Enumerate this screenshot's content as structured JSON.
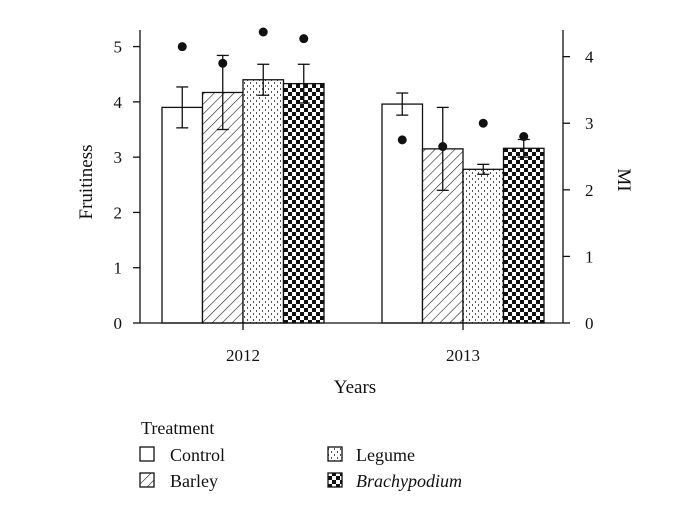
{
  "chart_data": {
    "type": "bar",
    "xlabel": "Years",
    "ylabel": "Fruitiness",
    "y2label": "MI",
    "categories": [
      "2012",
      "2013"
    ],
    "ylim": [
      0,
      5.3
    ],
    "yticks": [
      "0",
      "1",
      "2",
      "3",
      "4",
      "5"
    ],
    "y2lim": [
      0,
      4.4
    ],
    "y2ticks": [
      "0",
      "1",
      "2",
      "3",
      "4"
    ],
    "series": [
      {
        "name": "Control",
        "pattern": "white",
        "values": [
          3.9,
          3.96
        ],
        "errors": [
          0.37,
          0.2
        ],
        "mi": [
          4.15,
          2.75
        ]
      },
      {
        "name": "Barley",
        "pattern": "hatch",
        "values": [
          4.17,
          3.15
        ],
        "errors": [
          0.67,
          0.75
        ],
        "mi": [
          3.9,
          2.65
        ]
      },
      {
        "name": "Legume",
        "pattern": "dots",
        "values": [
          4.4,
          2.78
        ],
        "errors": [
          0.28,
          0.09
        ],
        "mi": [
          4.37,
          3.0
        ]
      },
      {
        "name": "Brachypodium",
        "pattern": "checker",
        "values": [
          4.33,
          3.16
        ],
        "errors": [
          0.35,
          0.16
        ],
        "mi": [
          4.27,
          2.8
        ]
      }
    ],
    "legend": {
      "title": "Treatment",
      "position": "bottom-left",
      "entries": [
        "Control",
        "Barley",
        "Legume",
        "Brachypodium"
      ]
    },
    "colors": {
      "ink": "#111111",
      "fill": "#ffffff"
    }
  }
}
